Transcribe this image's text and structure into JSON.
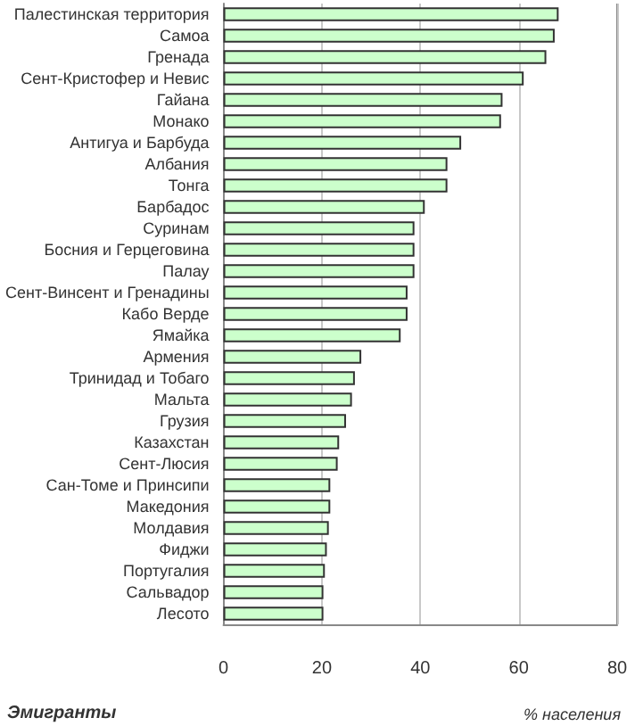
{
  "chart_data": {
    "type": "bar",
    "orientation": "horizontal",
    "title": "Эмигранты",
    "xlabel": "% населения",
    "categories": [
      "Палестинская территория",
      "Самоа",
      "Гренада",
      "Сент-Кристофер и Невис",
      "Гайана",
      "Монако",
      "Антигуа и Барбуда",
      "Албания",
      "Тонга",
      "Барбадос",
      "Суринам",
      "Босния и Герцеговина",
      "Палау",
      "Сент-Винсент и Гренадины",
      "Кабо Верде",
      "Ямайка",
      "Армения",
      "Тринидад и Тобаго",
      "Мальта",
      "Грузия",
      "Казахстан",
      "Сент-Люсия",
      "Сан-Томе и Принсипи",
      "Македония",
      "Молдавия",
      "Фиджи",
      "Португалия",
      "Сальвадор",
      "Лесото"
    ],
    "values": [
      68.1,
      67.3,
      65.6,
      61,
      56.7,
      56.4,
      48.3,
      45.5,
      45.5,
      40.9,
      38.8,
      38.8,
      38.8,
      37.4,
      37.4,
      36,
      28,
      26.7,
      26.1,
      24.9,
      23.5,
      23.2,
      21.7,
      21.7,
      21.4,
      21,
      20.6,
      20.3,
      20.3
    ],
    "color": "#ccffcc",
    "xlim": [
      0,
      80
    ],
    "xticks": [
      0,
      20,
      40,
      60,
      80
    ],
    "grid": "x"
  }
}
